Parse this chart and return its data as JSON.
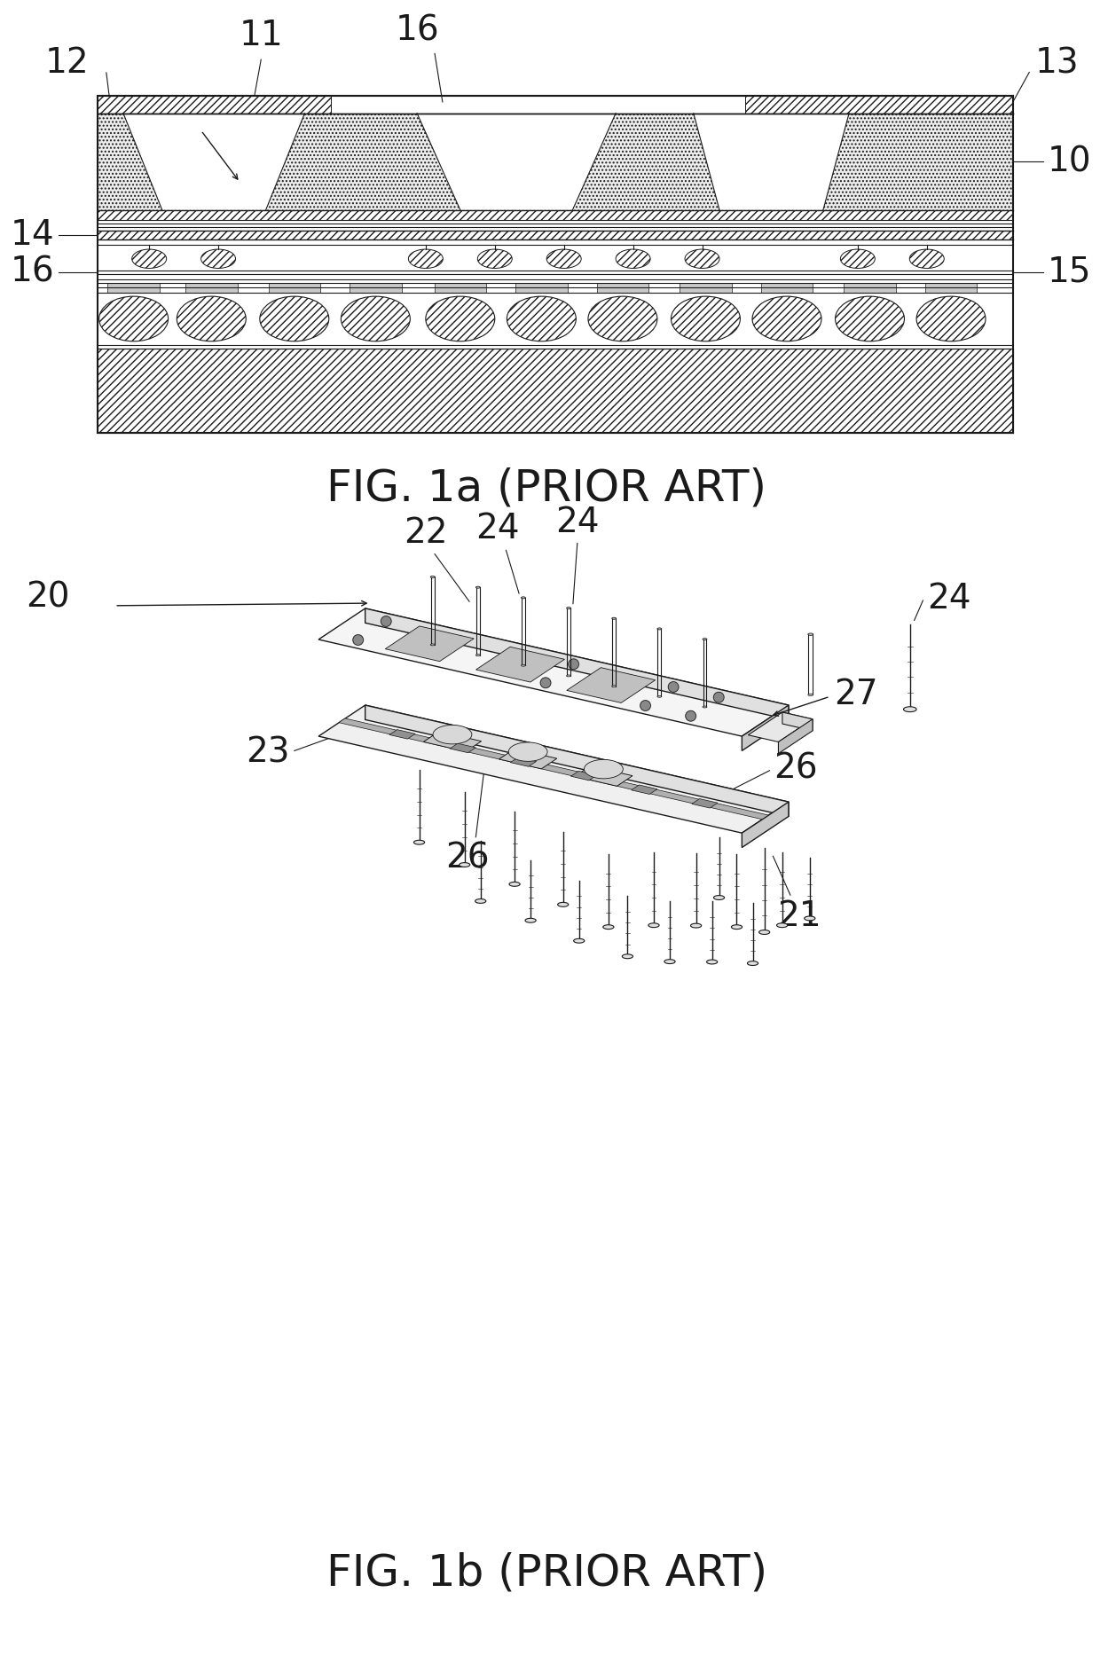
{
  "fig_width": 12.4,
  "fig_height": 18.93,
  "bg_color": "#ffffff",
  "fig1a_title": "FIG. 1a (PRIOR ART)",
  "fig1b_title": "FIG. 1b (PRIOR ART)",
  "color_line": "#1a1a1a"
}
